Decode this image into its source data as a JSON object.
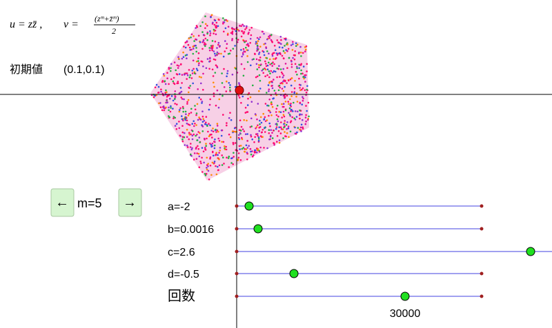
{
  "formula": {
    "u": "u = zz̄ ,",
    "v": "v =",
    "numerator": "(zᵐ+z̄ᵐ)",
    "denominator": "2"
  },
  "initial": {
    "label": "初期値",
    "value": "(0.1,0.1)"
  },
  "controls": {
    "left": "←",
    "m": "m=5",
    "right": "→"
  },
  "sliders": [
    {
      "label": "a=-2"
    },
    {
      "label": "b=0.0016"
    },
    {
      "label": "c=2.6"
    },
    {
      "label": "d=-0.5"
    },
    {
      "label": "回数",
      "value": 30000
    }
  ]
}
